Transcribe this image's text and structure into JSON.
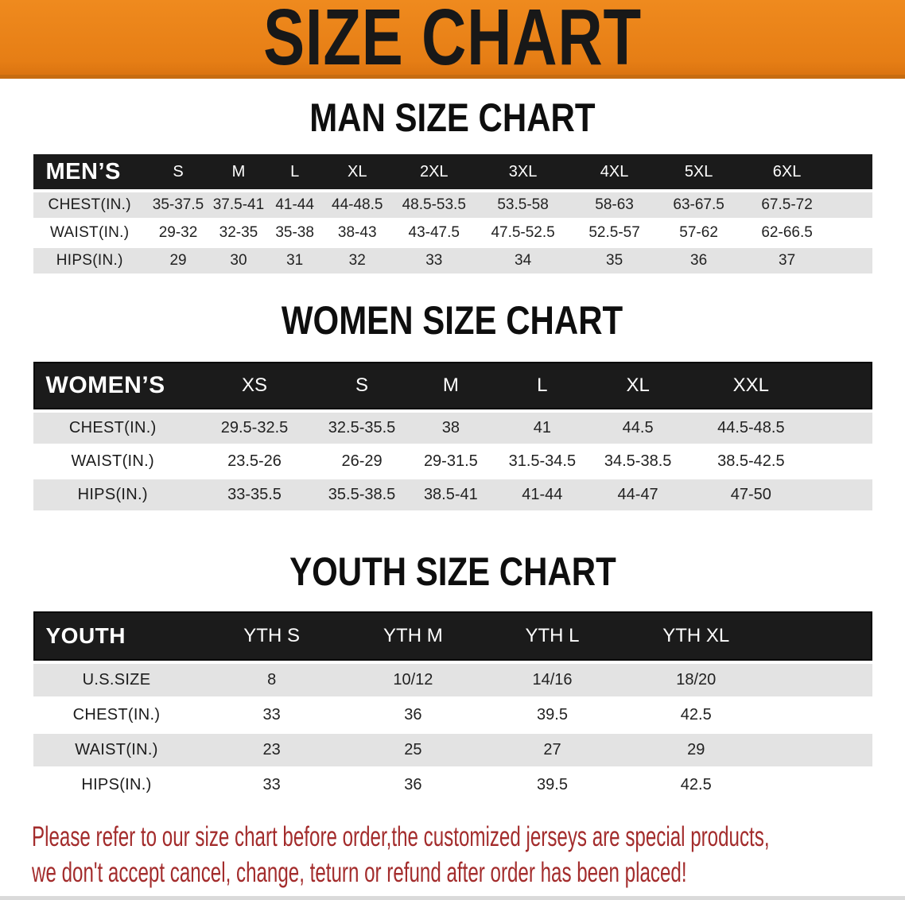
{
  "banner": {
    "title": "SIZE CHART"
  },
  "colors": {
    "banner_orange": "#EF8A1E",
    "header_black": "#1B1B1B",
    "row_gray": "#E3E3E3",
    "note_red": "#A32C2C"
  },
  "men": {
    "heading": "MAN SIZE CHART",
    "label": "MEN’S",
    "sizes": [
      "S",
      "M",
      "L",
      "XL",
      "2XL",
      "3XL",
      "4XL",
      "5XL",
      "6XL"
    ],
    "rows": [
      {
        "label": "CHEST(IN.)",
        "values": [
          "35-37.5",
          "37.5-41",
          "41-44",
          "44-48.5",
          "48.5-53.5",
          "53.5-58",
          "58-63",
          "63-67.5",
          "67.5-72"
        ]
      },
      {
        "label": "WAIST(IN.)",
        "values": [
          "29-32",
          "32-35",
          "35-38",
          "38-43",
          "43-47.5",
          "47.5-52.5",
          "52.5-57",
          "57-62",
          "62-66.5"
        ]
      },
      {
        "label": "HIPS(IN.)",
        "values": [
          "29",
          "30",
          "31",
          "32",
          "33",
          "34",
          "35",
          "36",
          "37"
        ]
      }
    ]
  },
  "women": {
    "heading": "WOMEN SIZE CHART",
    "label": "WOMEN’S",
    "sizes": [
      "XS",
      "S",
      "M",
      "L",
      "XL",
      "XXL"
    ],
    "rows": [
      {
        "label": "CHEST(IN.)",
        "values": [
          "29.5-32.5",
          "32.5-35.5",
          "38",
          "41",
          "44.5",
          "44.5-48.5"
        ]
      },
      {
        "label": "WAIST(IN.)",
        "values": [
          "23.5-26",
          "26-29",
          "29-31.5",
          "31.5-34.5",
          "34.5-38.5",
          "38.5-42.5"
        ]
      },
      {
        "label": "HIPS(IN.)",
        "values": [
          "33-35.5",
          "35.5-38.5",
          "38.5-41",
          "41-44",
          "44-47",
          "47-50"
        ]
      }
    ]
  },
  "youth": {
    "heading": "YOUTH SIZE CHART",
    "label": "YOUTH",
    "sizes": [
      "YTH S",
      "YTH M",
      "YTH L",
      "YTH XL"
    ],
    "rows": [
      {
        "label": "U.S.SIZE",
        "values": [
          "8",
          "10/12",
          "14/16",
          "18/20"
        ]
      },
      {
        "label": "CHEST(IN.)",
        "values": [
          "33",
          "36",
          "39.5",
          "42.5"
        ]
      },
      {
        "label": "WAIST(IN.)",
        "values": [
          "23",
          "25",
          "27",
          "29"
        ]
      },
      {
        "label": "HIPS(IN.)",
        "values": [
          "33",
          "36",
          "39.5",
          "42.5"
        ]
      }
    ]
  },
  "note": {
    "line1": "Please refer to our size chart before order,the customized jerseys are special products,",
    "line2": "we don't accept cancel, change, teturn or refund after order has been placed!"
  }
}
